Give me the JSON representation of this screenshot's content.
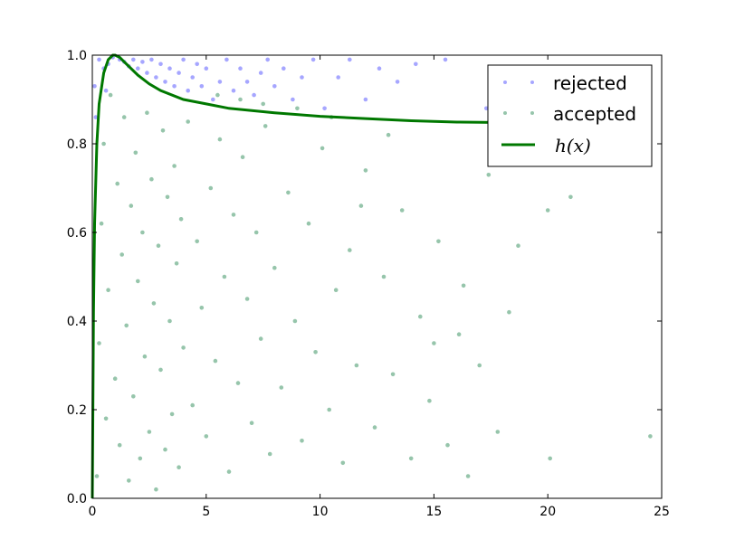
{
  "chart_data": {
    "type": "scatter",
    "title": "",
    "xlabel": "",
    "ylabel": "",
    "xlim": [
      0,
      25
    ],
    "ylim": [
      0,
      1.0
    ],
    "xticks": [
      "0",
      "5",
      "10",
      "15",
      "20",
      "25"
    ],
    "yticks": [
      "0.0",
      "0.2",
      "0.4",
      "0.6",
      "0.8",
      "1.0"
    ],
    "grid": false,
    "legend_position": "top-right",
    "series": [
      {
        "name": "rejected",
        "marker": "point",
        "color": "#0000ff",
        "alpha": 0.35,
        "points": [
          [
            0.3,
            0.99
          ],
          [
            0.5,
            0.97
          ],
          [
            0.7,
            0.98
          ],
          [
            0.9,
            0.995
          ],
          [
            1.2,
            0.99
          ],
          [
            1.4,
            0.985
          ],
          [
            1.6,
            0.975
          ],
          [
            1.8,
            0.99
          ],
          [
            2.0,
            0.97
          ],
          [
            2.2,
            0.985
          ],
          [
            2.4,
            0.96
          ],
          [
            2.6,
            0.99
          ],
          [
            2.8,
            0.95
          ],
          [
            3.0,
            0.98
          ],
          [
            3.2,
            0.94
          ],
          [
            3.4,
            0.97
          ],
          [
            3.6,
            0.93
          ],
          [
            3.8,
            0.96
          ],
          [
            4.0,
            0.99
          ],
          [
            4.2,
            0.92
          ],
          [
            4.4,
            0.95
          ],
          [
            4.6,
            0.98
          ],
          [
            4.8,
            0.93
          ],
          [
            5.0,
            0.97
          ],
          [
            5.3,
            0.9
          ],
          [
            5.6,
            0.94
          ],
          [
            5.9,
            0.99
          ],
          [
            6.2,
            0.92
          ],
          [
            6.5,
            0.97
          ],
          [
            6.8,
            0.94
          ],
          [
            7.1,
            0.91
          ],
          [
            7.4,
            0.96
          ],
          [
            7.7,
            0.99
          ],
          [
            8.0,
            0.93
          ],
          [
            8.4,
            0.97
          ],
          [
            8.8,
            0.9
          ],
          [
            9.2,
            0.95
          ],
          [
            9.7,
            0.99
          ],
          [
            10.2,
            0.88
          ],
          [
            10.8,
            0.95
          ],
          [
            11.3,
            0.99
          ],
          [
            12.0,
            0.9
          ],
          [
            12.6,
            0.97
          ],
          [
            13.4,
            0.94
          ],
          [
            14.2,
            0.98
          ],
          [
            15.5,
            0.99
          ],
          [
            17.3,
            0.88
          ],
          [
            0.15,
            0.86
          ],
          [
            0.1,
            0.93
          ],
          [
            0.6,
            0.92
          ]
        ]
      },
      {
        "name": "accepted",
        "marker": "point",
        "color": "#2e8b57",
        "alpha": 0.5,
        "points": [
          [
            0.2,
            0.05
          ],
          [
            0.3,
            0.35
          ],
          [
            0.4,
            0.62
          ],
          [
            0.5,
            0.8
          ],
          [
            0.6,
            0.18
          ],
          [
            0.7,
            0.47
          ],
          [
            0.8,
            0.91
          ],
          [
            1.0,
            0.27
          ],
          [
            1.1,
            0.71
          ],
          [
            1.2,
            0.12
          ],
          [
            1.3,
            0.55
          ],
          [
            1.4,
            0.86
          ],
          [
            1.5,
            0.39
          ],
          [
            1.6,
            0.04
          ],
          [
            1.7,
            0.66
          ],
          [
            1.8,
            0.23
          ],
          [
            1.9,
            0.78
          ],
          [
            2.0,
            0.49
          ],
          [
            2.1,
            0.09
          ],
          [
            2.2,
            0.6
          ],
          [
            2.3,
            0.32
          ],
          [
            2.4,
            0.87
          ],
          [
            2.5,
            0.15
          ],
          [
            2.6,
            0.72
          ],
          [
            2.7,
            0.44
          ],
          [
            2.8,
            0.02
          ],
          [
            2.9,
            0.57
          ],
          [
            3.0,
            0.29
          ],
          [
            3.1,
            0.83
          ],
          [
            3.2,
            0.11
          ],
          [
            3.3,
            0.68
          ],
          [
            3.4,
            0.4
          ],
          [
            3.5,
            0.19
          ],
          [
            3.6,
            0.75
          ],
          [
            3.7,
            0.53
          ],
          [
            3.8,
            0.07
          ],
          [
            3.9,
            0.63
          ],
          [
            4.0,
            0.34
          ],
          [
            4.2,
            0.85
          ],
          [
            4.4,
            0.21
          ],
          [
            4.6,
            0.58
          ],
          [
            4.8,
            0.43
          ],
          [
            5.0,
            0.14
          ],
          [
            5.2,
            0.7
          ],
          [
            5.4,
            0.31
          ],
          [
            5.6,
            0.81
          ],
          [
            5.8,
            0.5
          ],
          [
            6.0,
            0.06
          ],
          [
            6.2,
            0.64
          ],
          [
            6.4,
            0.26
          ],
          [
            6.6,
            0.77
          ],
          [
            6.8,
            0.45
          ],
          [
            7.0,
            0.17
          ],
          [
            7.2,
            0.6
          ],
          [
            7.4,
            0.36
          ],
          [
            7.6,
            0.84
          ],
          [
            7.8,
            0.1
          ],
          [
            8.0,
            0.52
          ],
          [
            8.3,
            0.25
          ],
          [
            8.6,
            0.69
          ],
          [
            8.9,
            0.4
          ],
          [
            9.2,
            0.13
          ],
          [
            9.5,
            0.62
          ],
          [
            9.8,
            0.33
          ],
          [
            10.1,
            0.79
          ],
          [
            10.4,
            0.2
          ],
          [
            10.7,
            0.47
          ],
          [
            11.0,
            0.08
          ],
          [
            11.3,
            0.56
          ],
          [
            11.6,
            0.3
          ],
          [
            12.0,
            0.74
          ],
          [
            12.4,
            0.16
          ],
          [
            12.8,
            0.5
          ],
          [
            13.2,
            0.28
          ],
          [
            13.6,
            0.65
          ],
          [
            14.0,
            0.09
          ],
          [
            14.4,
            0.41
          ],
          [
            14.8,
            0.22
          ],
          [
            15.2,
            0.58
          ],
          [
            15.6,
            0.12
          ],
          [
            16.1,
            0.37
          ],
          [
            16.5,
            0.05
          ],
          [
            17.0,
            0.3
          ],
          [
            17.4,
            0.73
          ],
          [
            17.8,
            0.15
          ],
          [
            18.3,
            0.42
          ],
          [
            18.7,
            0.57
          ],
          [
            20.0,
            0.65
          ],
          [
            20.1,
            0.09
          ],
          [
            21.0,
            0.68
          ],
          [
            24.5,
            0.14
          ],
          [
            16.3,
            0.48
          ],
          [
            15.0,
            0.35
          ],
          [
            13.0,
            0.82
          ],
          [
            11.8,
            0.66
          ],
          [
            10.5,
            0.86
          ],
          [
            9.0,
            0.88
          ],
          [
            7.5,
            0.89
          ],
          [
            6.5,
            0.9
          ],
          [
            5.5,
            0.91
          ]
        ]
      }
    ],
    "curve": {
      "name": "h(x)",
      "color": "#007800",
      "x": [
        0,
        0.05,
        0.1,
        0.2,
        0.3,
        0.5,
        0.7,
        0.9,
        1.0,
        1.2,
        1.5,
        2,
        2.5,
        3,
        4,
        5,
        6,
        7,
        8,
        10,
        12,
        14,
        16,
        18
      ],
      "y": [
        0.0,
        0.42,
        0.62,
        0.8,
        0.89,
        0.96,
        0.99,
        1.0,
        1.0,
        0.995,
        0.98,
        0.955,
        0.935,
        0.92,
        0.9,
        0.89,
        0.88,
        0.875,
        0.87,
        0.862,
        0.857,
        0.852,
        0.849,
        0.848
      ]
    }
  }
}
